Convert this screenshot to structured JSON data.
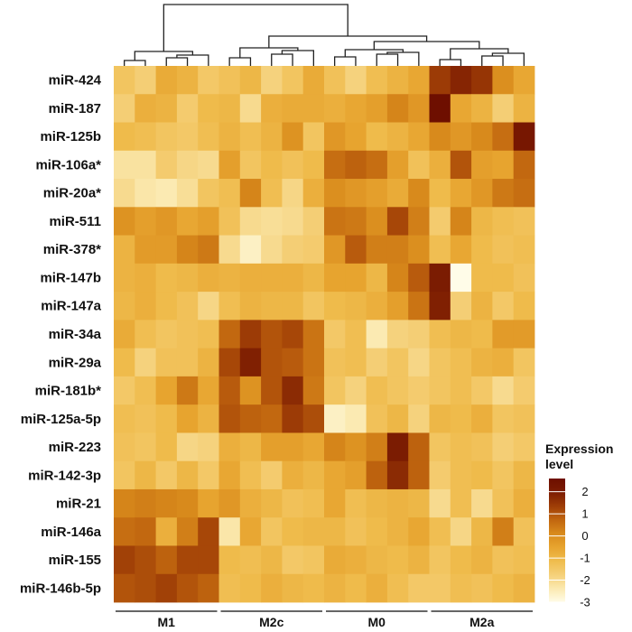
{
  "chart_data": {
    "type": "heatmap",
    "rows": [
      "miR-424",
      "miR-187",
      "miR-125b",
      "miR-106a*",
      "miR-20a*",
      "miR-511",
      "miR-378*",
      "miR-147b",
      "miR-147a",
      "miR-34a",
      "miR-29a",
      "miR-181b*",
      "miR-125a-5p",
      "miR-223",
      "miR-142-3p",
      "miR-21",
      "miR-146a",
      "miR-155",
      "miR-146b-5p"
    ],
    "groups": [
      {
        "label": "M1",
        "columns": 5
      },
      {
        "label": "M2c",
        "columns": 5
      },
      {
        "label": "M0",
        "columns": 5
      },
      {
        "label": "M2a",
        "columns": 5
      }
    ],
    "values": [
      [
        -1.4,
        -1.7,
        -0.7,
        -0.9,
        -1.5,
        -1.3,
        -1.0,
        -1.8,
        -1.4,
        -0.7,
        -1.3,
        -1.8,
        -1.2,
        -0.9,
        -0.6,
        1.4,
        1.8,
        1.5,
        0.0,
        -0.6
      ],
      [
        -1.7,
        -0.8,
        -0.9,
        -1.6,
        -1.1,
        -1.0,
        -2.0,
        -0.8,
        -0.7,
        -0.7,
        -0.8,
        -0.6,
        -0.4,
        0.2,
        -0.2,
        2.6,
        -0.6,
        -0.9,
        -1.7,
        -0.9
      ],
      [
        -1.1,
        -1.2,
        -1.4,
        -1.5,
        -1.2,
        -0.9,
        -1.2,
        -0.9,
        -0.1,
        -1.4,
        -0.2,
        -0.5,
        -1.1,
        -0.9,
        -0.6,
        0.1,
        -0.2,
        0.1,
        0.6,
        2.2
      ],
      [
        -2.2,
        -2.2,
        -1.6,
        -1.9,
        -2.0,
        -0.4,
        -1.4,
        -1.1,
        -1.3,
        -1.1,
        0.6,
        0.8,
        0.6,
        -0.4,
        -1.3,
        -0.8,
        1.0,
        -0.4,
        -0.5,
        0.7
      ],
      [
        -2.0,
        -2.3,
        -2.4,
        -2.1,
        -1.4,
        -1.2,
        0.2,
        -1.2,
        -1.9,
        -0.8,
        0.0,
        -0.2,
        -0.4,
        -0.7,
        0.1,
        -1.1,
        -0.6,
        -0.2,
        0.4,
        0.6
      ],
      [
        -0.1,
        -0.4,
        -0.2,
        -0.6,
        -0.4,
        -1.3,
        -2.0,
        -2.1,
        -2.0,
        -1.7,
        0.5,
        0.4,
        0.0,
        1.2,
        0.3,
        -1.6,
        0.2,
        -1.0,
        -1.2,
        -1.3
      ],
      [
        -0.9,
        -0.3,
        -0.3,
        0.2,
        0.4,
        -2.0,
        -2.6,
        -2.0,
        -1.7,
        -1.6,
        -0.2,
        0.9,
        0.3,
        0.3,
        0.0,
        -1.2,
        -0.6,
        -1.1,
        -1.3,
        -1.2
      ],
      [
        -0.9,
        -0.8,
        -1.1,
        -1.0,
        -0.8,
        -0.9,
        -0.8,
        -0.8,
        -0.8,
        -1.0,
        -0.5,
        -0.5,
        -1.0,
        0.2,
        0.9,
        2.0,
        -3.0,
        -1.1,
        -1.1,
        -1.3
      ],
      [
        -1.0,
        -0.8,
        -1.1,
        -1.3,
        -1.9,
        -1.2,
        -0.9,
        -1.0,
        -1.0,
        -1.4,
        -1.1,
        -1.0,
        -0.8,
        -0.4,
        0.5,
        1.9,
        -1.7,
        -0.9,
        -1.5,
        -1.1
      ],
      [
        -0.7,
        -1.2,
        -1.4,
        -1.3,
        -1.2,
        0.7,
        1.4,
        1.0,
        1.2,
        0.5,
        -1.5,
        -1.2,
        -2.4,
        -1.8,
        -1.7,
        -1.2,
        -1.0,
        -1.1,
        -0.3,
        -0.3
      ],
      [
        -1.1,
        -1.8,
        -1.3,
        -1.3,
        -0.9,
        1.2,
        1.9,
        1.0,
        0.9,
        0.5,
        -1.3,
        -1.2,
        -1.7,
        -1.4,
        -1.9,
        -1.4,
        -1.2,
        -0.9,
        -0.8,
        -1.4
      ],
      [
        -1.5,
        -1.2,
        -0.5,
        0.4,
        -0.6,
        0.9,
        -0.1,
        1.0,
        1.7,
        0.4,
        -1.4,
        -1.8,
        -1.2,
        -1.4,
        -1.6,
        -1.4,
        -1.2,
        -1.5,
        -2.0,
        -1.6
      ],
      [
        -1.2,
        -1.3,
        -1.1,
        -0.5,
        -0.9,
        1.0,
        0.8,
        0.7,
        1.4,
        1.1,
        -2.6,
        -2.4,
        -1.3,
        -1.0,
        -1.8,
        -1.0,
        -1.1,
        -0.8,
        -1.4,
        -1.3
      ],
      [
        -1.3,
        -1.4,
        -1.1,
        -1.9,
        -1.8,
        -0.8,
        -1.0,
        -0.4,
        -0.4,
        -0.6,
        0.2,
        -0.1,
        0.3,
        2.0,
        0.8,
        -1.4,
        -1.2,
        -1.3,
        -1.7,
        -1.5
      ],
      [
        -1.4,
        -1.0,
        -1.5,
        -1.0,
        -1.5,
        -0.6,
        -1.2,
        -1.6,
        -0.8,
        -1.0,
        -0.6,
        -0.4,
        0.8,
        1.7,
        0.8,
        -1.6,
        -1.2,
        -1.1,
        -1.4,
        -1.0
      ],
      [
        0.2,
        0.3,
        0.2,
        0.1,
        -0.5,
        -0.2,
        -0.8,
        -1.0,
        -1.3,
        -1.2,
        -0.6,
        -1.2,
        -1.0,
        -0.9,
        -1.0,
        -2.0,
        -1.2,
        -2.0,
        -1.3,
        -0.8
      ],
      [
        0.6,
        0.7,
        -0.8,
        0.3,
        1.2,
        -2.3,
        -0.6,
        -1.4,
        -1.1,
        -1.0,
        -1.0,
        -1.3,
        -1.1,
        -0.9,
        -0.6,
        -1.2,
        -1.9,
        -1.0,
        0.3,
        -1.3
      ],
      [
        1.3,
        1.1,
        0.8,
        1.2,
        1.2,
        -1.1,
        -1.2,
        -1.0,
        -1.5,
        -1.4,
        -0.7,
        -0.8,
        -1.0,
        -1.1,
        -0.9,
        -1.4,
        -1.1,
        -0.9,
        -1.3,
        -1.2
      ],
      [
        1.0,
        1.1,
        1.3,
        1.0,
        0.8,
        -1.2,
        -1.1,
        -0.8,
        -1.0,
        -1.1,
        -0.9,
        -1.1,
        -0.8,
        -1.2,
        -1.5,
        -1.5,
        -1.2,
        -1.3,
        -1.1,
        -0.9
      ]
    ],
    "color_scale": {
      "min": -3,
      "max": 2.6,
      "stops": [
        "#fffce8",
        "#fbe9b0",
        "#f5d079",
        "#efbc4d",
        "#e7a42f",
        "#d88a1c",
        "#c1660f",
        "#9e3d06",
        "#7c1c02",
        "#6e0f00"
      ]
    },
    "legend": {
      "title": "Expression level",
      "title_lines": [
        "Expression",
        "level"
      ],
      "ticks": [
        2,
        1,
        0,
        -1,
        -2,
        -3
      ],
      "placement": "right"
    },
    "dendrogram": "top"
  }
}
